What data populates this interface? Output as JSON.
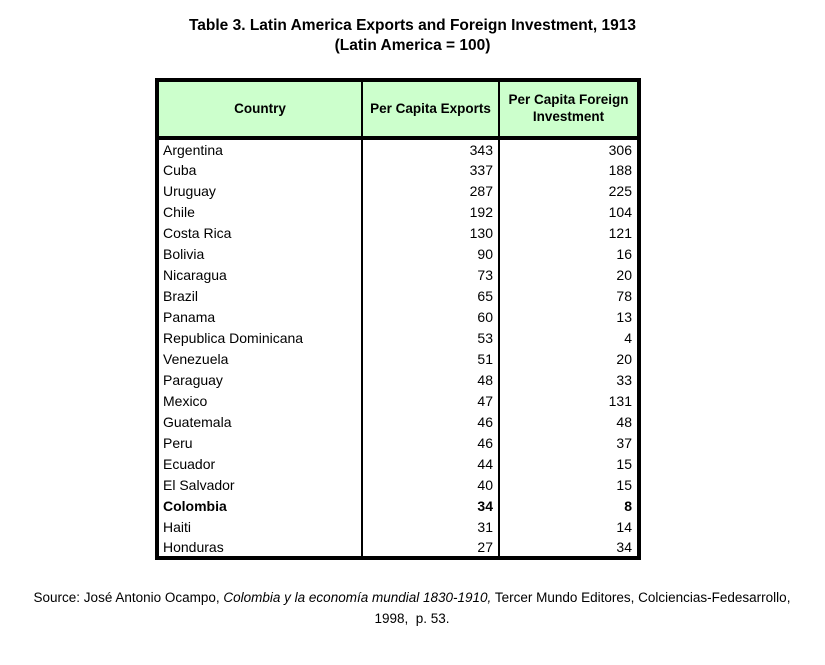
{
  "title": {
    "line1": "Table 3. Latin America Exports and Foreign Investment, 1913",
    "line2": "(Latin America = 100)"
  },
  "colors": {
    "header_background": "#ccffcc",
    "border": "#000000",
    "text": "#000000"
  },
  "table": {
    "headers": [
      "Country",
      "Per Capita Exports",
      "Per Capita Foreign Investment"
    ],
    "rows": [
      {
        "country": "Argentina",
        "exports": 343,
        "investment": 306,
        "bold": false
      },
      {
        "country": "Cuba",
        "exports": 337,
        "investment": 188,
        "bold": false
      },
      {
        "country": "Uruguay",
        "exports": 287,
        "investment": 225,
        "bold": false
      },
      {
        "country": "Chile",
        "exports": 192,
        "investment": 104,
        "bold": false
      },
      {
        "country": "Costa Rica",
        "exports": 130,
        "investment": 121,
        "bold": false
      },
      {
        "country": "Bolivia",
        "exports": 90,
        "investment": 16,
        "bold": false
      },
      {
        "country": "Nicaragua",
        "exports": 73,
        "investment": 20,
        "bold": false
      },
      {
        "country": "Brazil",
        "exports": 65,
        "investment": 78,
        "bold": false
      },
      {
        "country": "Panama",
        "exports": 60,
        "investment": 13,
        "bold": false
      },
      {
        "country": "Republica Dominicana",
        "exports": 53,
        "investment": 4,
        "bold": false
      },
      {
        "country": "Venezuela",
        "exports": 51,
        "investment": 20,
        "bold": false
      },
      {
        "country": "Paraguay",
        "exports": 48,
        "investment": 33,
        "bold": false
      },
      {
        "country": "Mexico",
        "exports": 47,
        "investment": 131,
        "bold": false
      },
      {
        "country": "Guatemala",
        "exports": 46,
        "investment": 48,
        "bold": false
      },
      {
        "country": "Peru",
        "exports": 46,
        "investment": 37,
        "bold": false
      },
      {
        "country": "Ecuador",
        "exports": 44,
        "investment": 15,
        "bold": false
      },
      {
        "country": "El Salvador",
        "exports": 40,
        "investment": 15,
        "bold": false
      },
      {
        "country": "Colombia",
        "exports": 34,
        "investment": 8,
        "bold": true
      },
      {
        "country": "Haiti",
        "exports": 31,
        "investment": 14,
        "bold": false
      },
      {
        "country": "Honduras",
        "exports": 27,
        "investment": 34,
        "bold": false
      }
    ]
  },
  "source": {
    "prefix": "Source: José Antonio Ocampo, ",
    "work_title_italic": "Colombia y la economía mundial 1830-1910,",
    "suffix": " Tercer Mundo Editores, Colciencias-Fedesarrollo, 1998,  p. 53."
  }
}
